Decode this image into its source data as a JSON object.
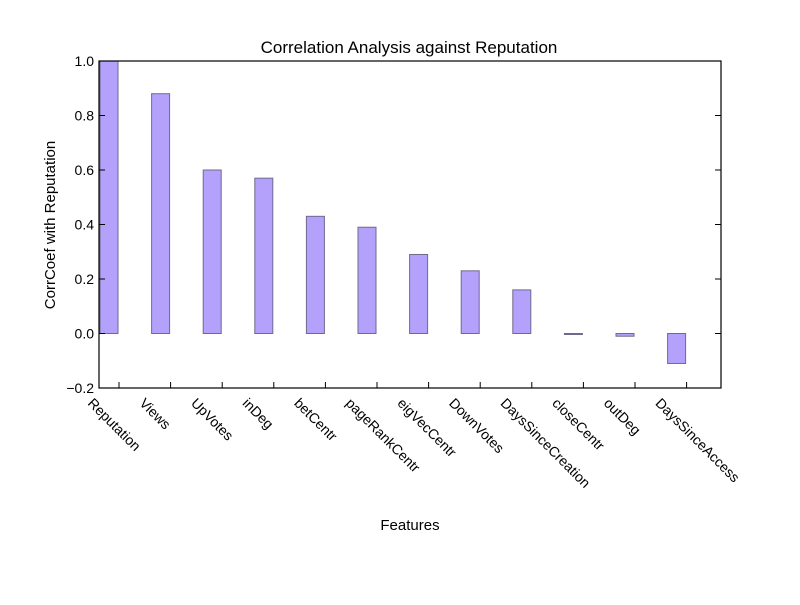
{
  "chart_data": {
    "type": "bar",
    "title": "Correlation Analysis against Reputation",
    "xlabel": "Features",
    "ylabel": "CorrCoef with Reputation",
    "categories": [
      "Reputation",
      "Views",
      "UpVotes",
      "inDeg",
      "betCentr",
      "pageRankCentr",
      "eigVecCentr",
      "DownVotes",
      "DaysSinceCreation",
      "closeCentr",
      "outDeg",
      "DaysSinceAccess"
    ],
    "values": [
      1.0,
      0.88,
      0.6,
      0.57,
      0.43,
      0.39,
      0.29,
      0.23,
      0.16,
      0.0,
      -0.01,
      -0.11
    ],
    "ylim": [
      -0.2,
      1.0
    ],
    "yticks": [
      -0.2,
      0.0,
      0.2,
      0.4,
      0.6,
      0.8,
      1.0
    ],
    "ytick_labels": [
      "−0.2",
      "0.0",
      "0.2",
      "0.4",
      "0.6",
      "0.8",
      "1.0"
    ],
    "grid": false,
    "legend": "none",
    "colors": {
      "bar_fill": "#b3a1fc",
      "bar_stroke": "#6f6a8c",
      "axis": "#000000"
    }
  }
}
